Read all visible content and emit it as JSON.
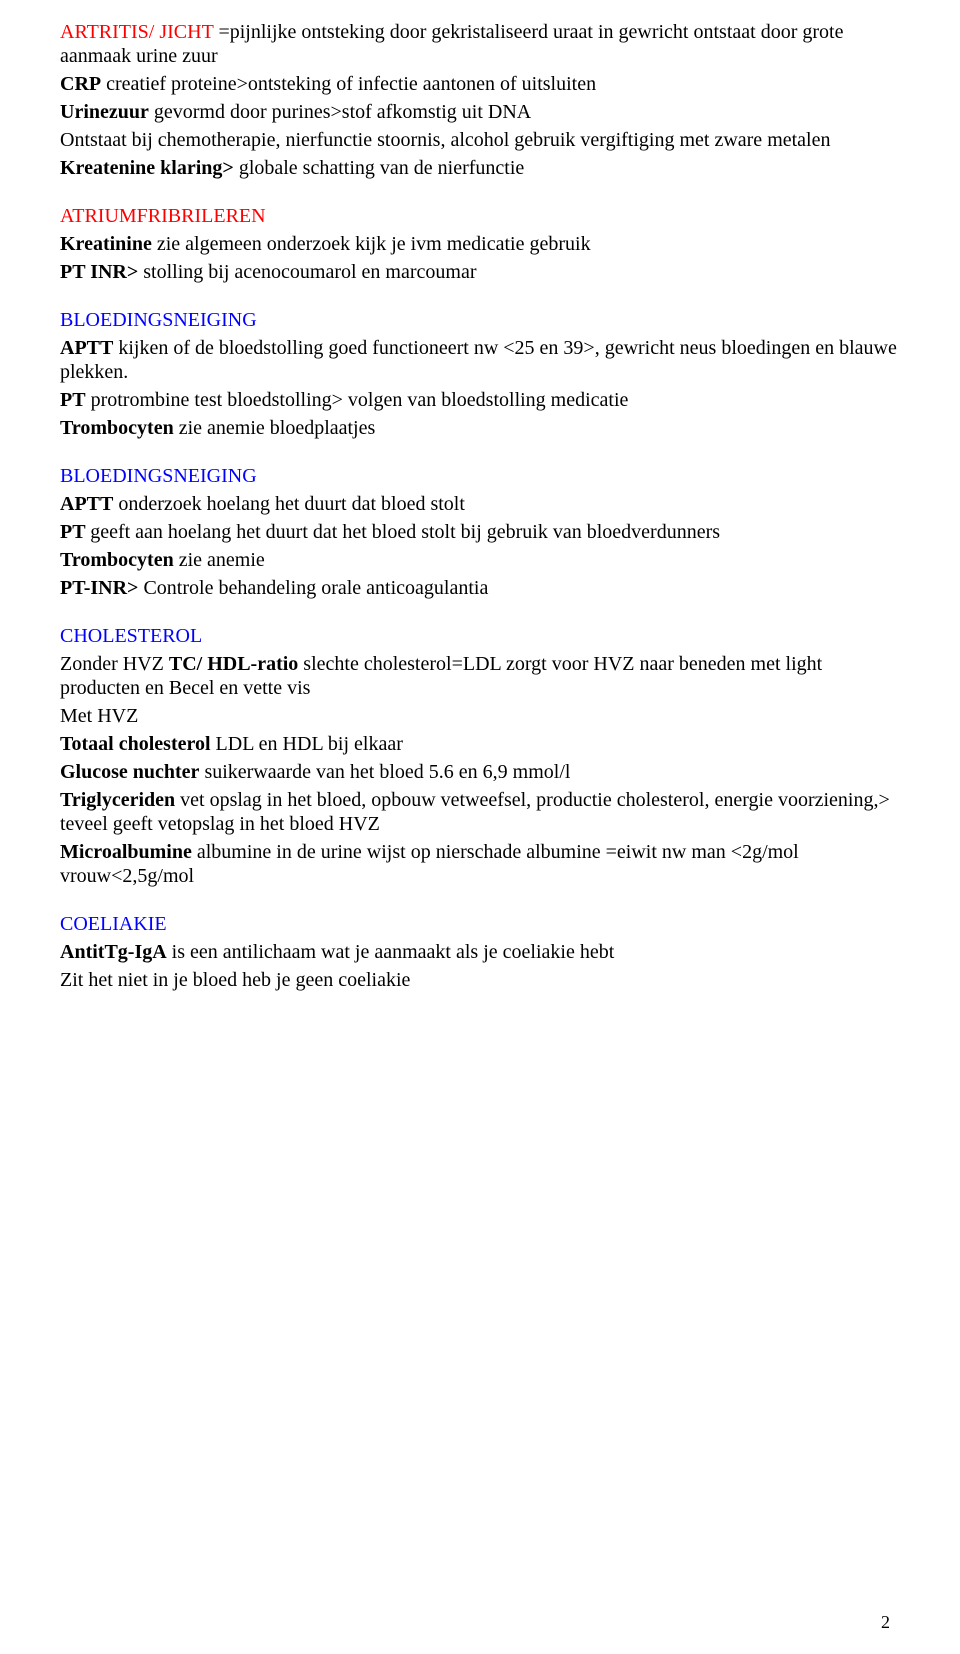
{
  "colors": {
    "text": "#000000",
    "red": "#ff0000",
    "blue": "#0000ff",
    "background": "#ffffff"
  },
  "typography": {
    "font_family": "Times New Roman",
    "font_size_pt": 15,
    "line_height": 1.2
  },
  "page_number": "2",
  "sections": [
    {
      "heading": "ARTRITIS/ JICHT",
      "heading_color": "red",
      "lines": [
        {
          "spans": [
            {
              "t": " =pijnlijke ontsteking door gekristaliseerd uraat in gewricht ontstaat door grote aanmaak urine zuur"
            }
          ]
        },
        {
          "spans": [
            {
              "t": "CRP",
              "bold": true
            },
            {
              "t": " creatief proteine>ontsteking  of infectie aantonen of uitsluiten"
            }
          ]
        },
        {
          "spans": [
            {
              "t": "Urinezuur",
              "bold": true
            },
            {
              "t": " gevormd door purines>stof afkomstig uit DNA"
            }
          ]
        },
        {
          "spans": [
            {
              "t": "Ontstaat bij chemotherapie, nierfunctie stoornis, alcohol gebruik vergiftiging met zware metalen"
            }
          ]
        },
        {
          "spans": [
            {
              "t": "Kreatenine klaring>",
              "bold": true
            },
            {
              "t": " globale schatting van de nierfunctie"
            }
          ]
        }
      ]
    },
    {
      "heading": "ATRIUMFRIBRILEREN",
      "heading_color": "red",
      "lines": [
        {
          "spans": [
            {
              "t": "Kreatinine",
              "bold": true
            },
            {
              "t": " zie algemeen onderzoek kijk je ivm medicatie gebruik"
            }
          ]
        },
        {
          "spans": [
            {
              "t": "PT INR>",
              "bold": true
            },
            {
              "t": " stolling bij acenocoumarol en marcoumar"
            }
          ]
        }
      ]
    },
    {
      "heading": "BLOEDINGSNEIGING",
      "heading_color": "blue",
      "lines": [
        {
          "spans": [
            {
              "t": "APTT",
              "bold": true
            },
            {
              "t": " kijken of de bloedstolling goed functioneert nw <25 en 39>, gewricht neus bloedingen en blauwe plekken."
            }
          ]
        },
        {
          "spans": [
            {
              "t": "PT",
              "bold": true
            },
            {
              "t": " protrombine test bloedstolling> volgen van bloedstolling medicatie"
            }
          ]
        },
        {
          "spans": [
            {
              "t": "Trombocyten",
              "bold": true
            },
            {
              "t": " zie anemie bloedplaatjes"
            }
          ]
        }
      ]
    },
    {
      "heading": "BLOEDINGSNEIGING",
      "heading_color": "blue",
      "lines": [
        {
          "spans": [
            {
              "t": "APTT",
              "bold": true
            },
            {
              "t": " onderzoek hoelang het duurt dat bloed stolt"
            }
          ]
        },
        {
          "spans": [
            {
              "t": "PT ",
              "bold": true
            },
            {
              "t": " geeft aan hoelang het duurt dat het bloed stolt bij gebruik van bloedverdunners"
            }
          ]
        },
        {
          "spans": [
            {
              "t": "Trombocyten",
              "bold": true
            },
            {
              "t": " zie anemie"
            }
          ]
        },
        {
          "spans": [
            {
              "t": "PT-INR>",
              "bold": true
            },
            {
              "t": " Controle behandeling orale anticoagulantia"
            }
          ]
        }
      ]
    },
    {
      "heading": "CHOLESTEROL",
      "heading_color": "blue",
      "lines": [
        {
          "spans": [
            {
              "t": "Zonder HVZ "
            },
            {
              "t": "TC/ HDL-ratio",
              "bold": true
            },
            {
              "t": " slechte cholesterol=LDL zorgt voor HVZ naar beneden met light producten en Becel en vette vis"
            }
          ]
        },
        {
          "spans": [
            {
              "t": "Met HVZ"
            }
          ]
        },
        {
          "spans": [
            {
              "t": "Totaal cholesterol",
              "bold": true
            },
            {
              "t": " LDL en HDL bij elkaar"
            }
          ]
        },
        {
          "spans": [
            {
              "t": "Glucose nuchter",
              "bold": true
            },
            {
              "t": " suikerwaarde van het bloed 5.6 en 6,9 mmol/l"
            }
          ]
        },
        {
          "spans": [
            {
              "t": "Triglyceriden",
              "bold": true
            },
            {
              "t": " vet opslag in het bloed, opbouw vetweefsel, productie cholesterol, energie voorziening,> teveel geeft vetopslag in het bloed HVZ"
            }
          ]
        },
        {
          "spans": [
            {
              "t": "Microalbumine",
              "bold": true
            },
            {
              "t": " albumine in de urine wijst op nierschade albumine =eiwit  nw man <2g/mol vrouw<2,5g/mol"
            }
          ]
        }
      ]
    },
    {
      "heading": "COELIAKIE",
      "heading_color": "blue",
      "lines": [
        {
          "spans": [
            {
              "t": "AntitTg-IgA",
              "bold": true
            },
            {
              "t": " is een antilichaam wat je aanmaakt als je coeliakie hebt"
            }
          ]
        },
        {
          "spans": [
            {
              "t": "Zit het niet in je bloed heb je geen coeliakie"
            }
          ]
        }
      ]
    }
  ]
}
